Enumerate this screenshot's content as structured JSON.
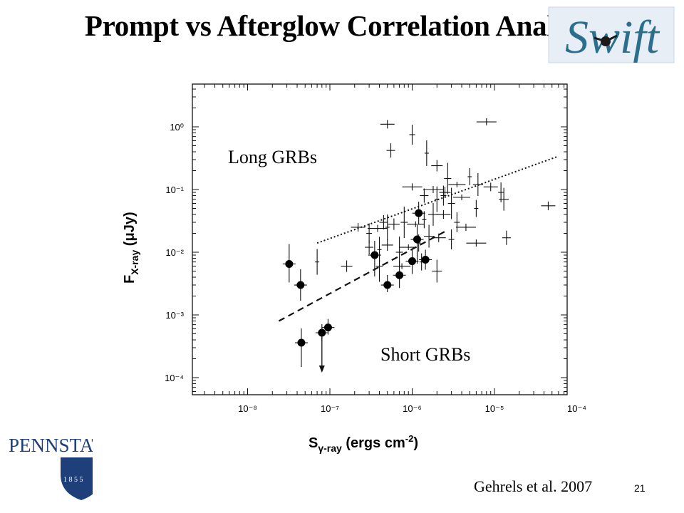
{
  "slide": {
    "title": "Prompt vs Afterglow Correlation Analysis",
    "citation": "Gehrels et al. 2007",
    "number": "21",
    "logo_right": "Swift",
    "logo_left_text": "PENNSTATE",
    "logo_left_year": "1 8 5 5"
  },
  "chart_data": {
    "type": "scatter",
    "title": "",
    "xlabel": "S γ-ray (ergs cm⁻²)",
    "ylabel": "F X-ray (μJy)",
    "xscale": "log",
    "yscale": "log",
    "xlim": [
      1e-09,
      0.0001
    ],
    "ylim": [
      5e-05,
      5
    ],
    "xticks": [
      "10⁻⁸",
      "10⁻⁷",
      "10⁻⁶",
      "10⁻⁵",
      "10⁻⁴"
    ],
    "yticks": [
      "10⁰",
      "10⁻¹",
      "10⁻²",
      "10⁻³",
      "10⁻⁴"
    ],
    "annotations": [
      "Long GRBs",
      "Short GRBs"
    ],
    "series": [
      {
        "name": "Long GRBs",
        "marker": "cross",
        "points": [
          [
            5e-07,
            1.1
          ],
          [
            1e-06,
            0.75
          ],
          [
            8e-06,
            1.2
          ],
          [
            5.5e-07,
            0.42
          ],
          [
            1.5e-06,
            0.38
          ],
          [
            2e-06,
            0.24
          ],
          [
            2.7e-06,
            0.15
          ],
          [
            3.5e-06,
            0.12
          ],
          [
            5e-06,
            0.16
          ],
          [
            6.3e-06,
            0.12
          ],
          [
            9e-06,
            0.11
          ],
          [
            1.2e-05,
            0.09
          ],
          [
            1e-06,
            0.11
          ],
          [
            1.4e-06,
            0.08
          ],
          [
            2e-06,
            0.07
          ],
          [
            2.5e-06,
            0.09
          ],
          [
            3e-06,
            0.06
          ],
          [
            4e-06,
            0.075
          ],
          [
            6e-06,
            0.05
          ],
          [
            1.3e-05,
            0.07
          ],
          [
            2.2e-07,
            0.025
          ],
          [
            3e-07,
            0.02
          ],
          [
            3.8e-07,
            0.024
          ],
          [
            4.5e-07,
            0.03
          ],
          [
            5e-07,
            0.025
          ],
          [
            6e-07,
            0.028
          ],
          [
            8e-07,
            0.03
          ],
          [
            1.1e-06,
            0.028
          ],
          [
            1.4e-06,
            0.033
          ],
          [
            1.8e-06,
            0.04
          ],
          [
            2.4e-06,
            0.04
          ],
          [
            3.5e-06,
            0.03
          ],
          [
            4.5e-06,
            0.025
          ],
          [
            3e-07,
            0.012
          ],
          [
            4e-07,
            0.011
          ],
          [
            5e-07,
            0.013
          ],
          [
            7e-07,
            0.01
          ],
          [
            9e-07,
            0.012
          ],
          [
            1.2e-06,
            0.014
          ],
          [
            1.6e-06,
            0.018
          ],
          [
            2.1e-06,
            0.017
          ],
          [
            3e-06,
            0.016
          ],
          [
            6e-06,
            0.014
          ],
          [
            1.4e-05,
            0.017
          ],
          [
            7e-08,
            0.007
          ],
          [
            1.6e-07,
            0.006
          ],
          [
            4e-07,
            0.006
          ],
          [
            7.5e-07,
            0.006
          ],
          [
            1.3e-06,
            0.007
          ],
          [
            2e-06,
            0.005
          ],
          [
            4.5e-05,
            0.055
          ],
          [
            2.4e-06,
            0.08
          ],
          [
            1.8e-06,
            0.1
          ]
        ]
      },
      {
        "name": "Short GRBs",
        "marker": "filled-circle",
        "points": [
          [
            3.2e-08,
            0.0065
          ],
          [
            4.4e-08,
            0.003
          ],
          [
            4.5e-08,
            0.00036
          ],
          [
            8e-08,
            0.00052
          ],
          [
            9.5e-08,
            0.00063
          ],
          [
            3.5e-07,
            0.009
          ],
          [
            5e-07,
            0.003
          ],
          [
            7e-07,
            0.0043
          ],
          [
            1e-06,
            0.0072
          ],
          [
            1.15e-06,
            0.016
          ],
          [
            1.2e-06,
            0.042
          ],
          [
            1.45e-06,
            0.0076
          ]
        ]
      }
    ],
    "fit_lines": [
      {
        "name": "Long GRBs fit",
        "style": "dotted",
        "from": [
          7e-08,
          0.014
        ],
        "to": [
          6e-05,
          0.34
        ]
      },
      {
        "name": "Short GRBs fit",
        "style": "dashed",
        "from": [
          2.4e-08,
          0.0008
        ],
        "to": [
          2.6e-06,
          0.022
        ]
      }
    ],
    "upper_limit": {
      "x": 8e-08,
      "y": 0.00052
    }
  }
}
